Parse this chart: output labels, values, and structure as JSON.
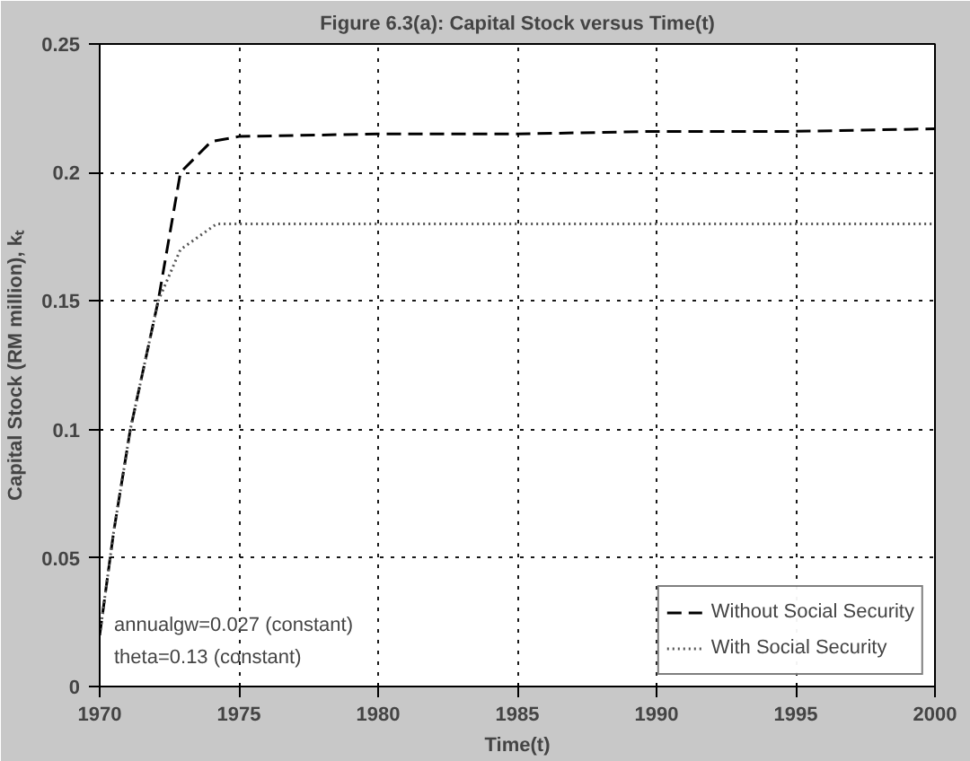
{
  "chart_data": {
    "type": "line",
    "title": "Figure 6.3(a): Capital Stock versus Time(t)",
    "xlabel": "Time(t)",
    "ylabel": "Capital Stock (RM million), kₜ",
    "xlim": [
      1970,
      2000
    ],
    "ylim": [
      0,
      0.25
    ],
    "xticks": [
      1970,
      1975,
      1980,
      1985,
      1990,
      1995,
      2000
    ],
    "yticks": [
      0,
      0.05,
      0.1,
      0.15,
      0.2,
      0.25
    ],
    "grid": true,
    "legend": "bottom right",
    "annotations": [
      "annualgw=0.027 (constant)",
      "theta=0.13 (constant)"
    ],
    "series": [
      {
        "name": "Without Social Security",
        "color": "#000000",
        "line_style": "dashed",
        "x": [
          1970,
          1970.5,
          1971.1,
          1972.1,
          1972.9,
          1974,
          1975,
          1980,
          1985,
          1990,
          1995,
          2000
        ],
        "values": [
          0.02,
          0.06,
          0.1,
          0.15,
          0.2,
          0.212,
          0.214,
          0.215,
          0.215,
          0.216,
          0.216,
          0.217
        ]
      },
      {
        "name": "With Social Security",
        "color": "#555555",
        "line_style": "dotted",
        "x": [
          1970,
          1970.5,
          1971.1,
          1972.1,
          1972.9,
          1974.2,
          1980,
          1985,
          1990,
          1995,
          2000
        ],
        "values": [
          0.02,
          0.06,
          0.1,
          0.15,
          0.17,
          0.18,
          0.18,
          0.18,
          0.18,
          0.18,
          0.18
        ]
      }
    ]
  }
}
